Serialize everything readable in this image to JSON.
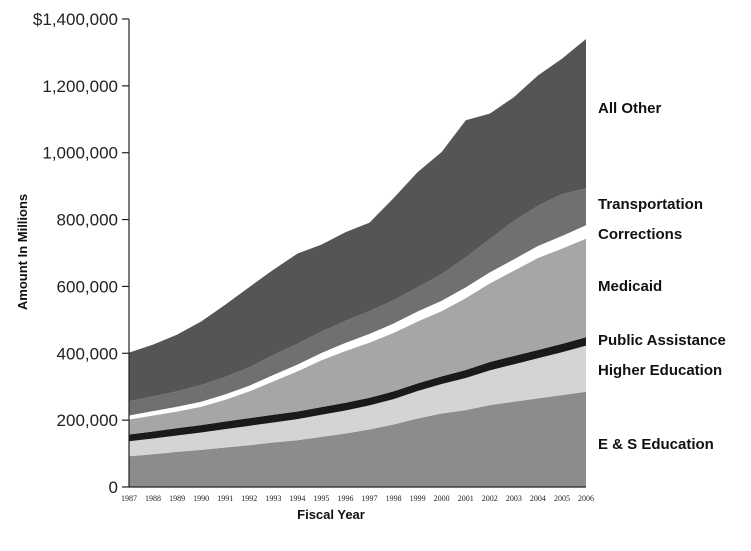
{
  "chart_data": {
    "type": "area",
    "stacked": true,
    "title": "",
    "xlabel": "Fiscal Year",
    "ylabel": "Amount In Millions",
    "ylim": [
      0,
      1400000
    ],
    "yticks": [
      0,
      200000,
      400000,
      600000,
      800000,
      1000000,
      1200000,
      1400000
    ],
    "ytick_labels": [
      "0",
      "200,000",
      "400,000",
      "600,000",
      "800,000",
      "1,000,000",
      "1,200,000",
      "$1,400,000"
    ],
    "grid": false,
    "legend": "inline-right",
    "x": [
      "1987",
      "1988",
      "1989",
      "1990",
      "1991",
      "1992",
      "1993",
      "1994",
      "1995",
      "1996",
      "1997",
      "1998",
      "1999",
      "2000",
      "2001",
      "2002",
      "2003",
      "2004",
      "2005",
      "2006"
    ],
    "series": [
      {
        "name": "E & S Education",
        "color": "#8c8c8c",
        "values": [
          92000,
          98000,
          105000,
          111000,
          118000,
          125000,
          133000,
          140000,
          150000,
          160000,
          172000,
          187000,
          205000,
          220000,
          230000,
          245000,
          255000,
          265000,
          275000,
          285000
        ]
      },
      {
        "name": "Higher Education",
        "color": "#d4d4d4",
        "values": [
          45000,
          47000,
          49000,
          52000,
          55000,
          58000,
          60000,
          63000,
          66000,
          69000,
          72000,
          76000,
          82000,
          88000,
          96000,
          104000,
          112000,
          120000,
          128000,
          138000
        ]
      },
      {
        "name": "Public Assistance",
        "color": "#1a1a1a",
        "values": [
          20000,
          21000,
          22000,
          22000,
          23000,
          23000,
          23000,
          23000,
          23000,
          23000,
          23000,
          23000,
          23000,
          23000,
          24000,
          25000,
          25000,
          25000,
          25000,
          25000
        ]
      },
      {
        "name": "Medicaid",
        "color": "#a6a6a6",
        "values": [
          45000,
          48000,
          50000,
          55000,
          65000,
          80000,
          100000,
          120000,
          140000,
          155000,
          165000,
          175000,
          185000,
          195000,
          215000,
          235000,
          255000,
          275000,
          285000,
          295000
        ]
      },
      {
        "name": "Corrections",
        "color": "#ffffff",
        "values": [
          12000,
          13000,
          14000,
          15000,
          16000,
          17000,
          19000,
          20000,
          22000,
          24000,
          26000,
          28000,
          30000,
          31000,
          32000,
          33000,
          34000,
          36000,
          38000,
          40000
        ]
      },
      {
        "name": "Transportation",
        "color": "#707070",
        "values": [
          42000,
          44000,
          46000,
          50000,
          52000,
          55000,
          60000,
          62000,
          64000,
          66000,
          68000,
          70000,
          72000,
          80000,
          90000,
          100000,
          115000,
          120000,
          125000,
          110000
        ]
      },
      {
        "name": "All Other",
        "color": "#555555",
        "values": [
          146000,
          155000,
          170000,
          190000,
          216000,
          240000,
          255000,
          270000,
          260000,
          265000,
          265000,
          305000,
          345000,
          365000,
          410000,
          375000,
          370000,
          390000,
          405000,
          447000
        ]
      }
    ]
  }
}
